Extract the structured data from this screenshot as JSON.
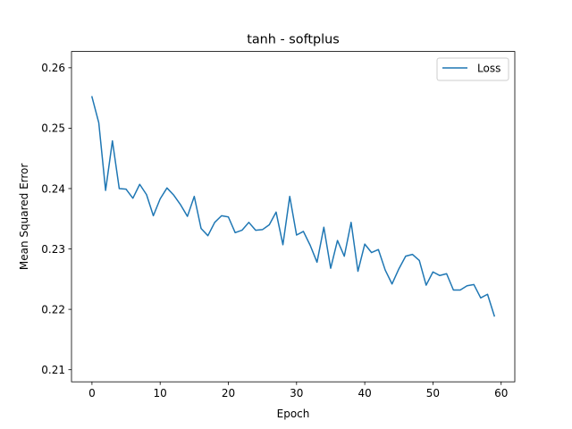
{
  "chart_data": {
    "type": "line",
    "title": "tanh - softplus",
    "xlabel": "Epoch",
    "ylabel": "Mean Squared Error",
    "xlim": [
      -3,
      62
    ],
    "ylim": [
      0.208,
      0.2627
    ],
    "xticks": [
      0,
      10,
      20,
      30,
      40,
      50,
      60
    ],
    "yticks": [
      0.21,
      0.22,
      0.23,
      0.24,
      0.25,
      0.26
    ],
    "grid": false,
    "legend": "top-right",
    "color": "#1f77b4",
    "series": [
      {
        "name": "Loss",
        "x": [
          0,
          1,
          2,
          3,
          4,
          5,
          6,
          7,
          8,
          9,
          10,
          11,
          12,
          13,
          14,
          15,
          16,
          17,
          18,
          19,
          20,
          21,
          22,
          23,
          24,
          25,
          26,
          27,
          28,
          29,
          30,
          31,
          32,
          33,
          34,
          35,
          36,
          37,
          38,
          39,
          40,
          41,
          42,
          43,
          44,
          45,
          46,
          47,
          48,
          49,
          50,
          51,
          52,
          53,
          54,
          55,
          56,
          57,
          58,
          59
        ],
        "y": [
          0.2552,
          0.2509,
          0.2397,
          0.2479,
          0.24,
          0.2399,
          0.2384,
          0.2407,
          0.239,
          0.2355,
          0.2383,
          0.2401,
          0.2389,
          0.2373,
          0.2354,
          0.2387,
          0.2334,
          0.2322,
          0.2344,
          0.2355,
          0.2353,
          0.2327,
          0.2331,
          0.2344,
          0.2331,
          0.2332,
          0.234,
          0.2361,
          0.2307,
          0.2387,
          0.2323,
          0.2329,
          0.2306,
          0.2278,
          0.2336,
          0.2268,
          0.2314,
          0.2288,
          0.2344,
          0.2263,
          0.2308,
          0.2294,
          0.2299,
          0.2265,
          0.2242,
          0.2267,
          0.2288,
          0.2291,
          0.2281,
          0.224,
          0.2262,
          0.2256,
          0.2259,
          0.2232,
          0.2232,
          0.2239,
          0.2241,
          0.2219,
          0.2225,
          0.2189
        ]
      }
    ]
  }
}
